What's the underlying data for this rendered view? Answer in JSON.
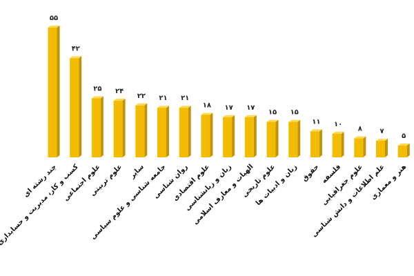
{
  "chart_data": {
    "type": "bar",
    "title": "",
    "xlabel": "",
    "ylabel": "",
    "ylim": [
      0,
      55
    ],
    "grid": false,
    "legend": "none",
    "colors": {
      "front": "#F4BC00",
      "side": "#C2930A",
      "top": "#FFD955"
    },
    "categories": [
      "چند رشته ای",
      "کسب و کار، مدیریت و حسابداری",
      "علوم اجتماعی",
      "علوم تربیتی",
      "سایر",
      "جامعه شناسی و علوم سیاسی",
      "روان شناسی",
      "علوم اقتصادی",
      "زبان و زبانشناسی",
      "الهیات و معارف اسلامی",
      "علوم تاریخی",
      "زبان و ادبیات ها",
      "حقوق",
      "فلسفه",
      "علوم جغرافیایی",
      "علم اطلاعات و دانش شناسی",
      "هنر و معماری"
    ],
    "values": [
      55,
      42,
      25,
      24,
      22,
      21,
      21,
      18,
      17,
      17,
      15,
      15,
      11,
      10,
      8,
      7,
      5
    ],
    "data_labels": [
      "۵۵",
      "۴۲",
      "۲۵",
      "۲۴",
      "۲۲",
      "۲۱",
      "۲۱",
      "۱۸",
      "۱۷",
      "۱۷",
      "۱۵",
      "۱۵",
      "۱۱",
      "۱۰",
      "۸",
      "۷",
      "۵"
    ]
  }
}
